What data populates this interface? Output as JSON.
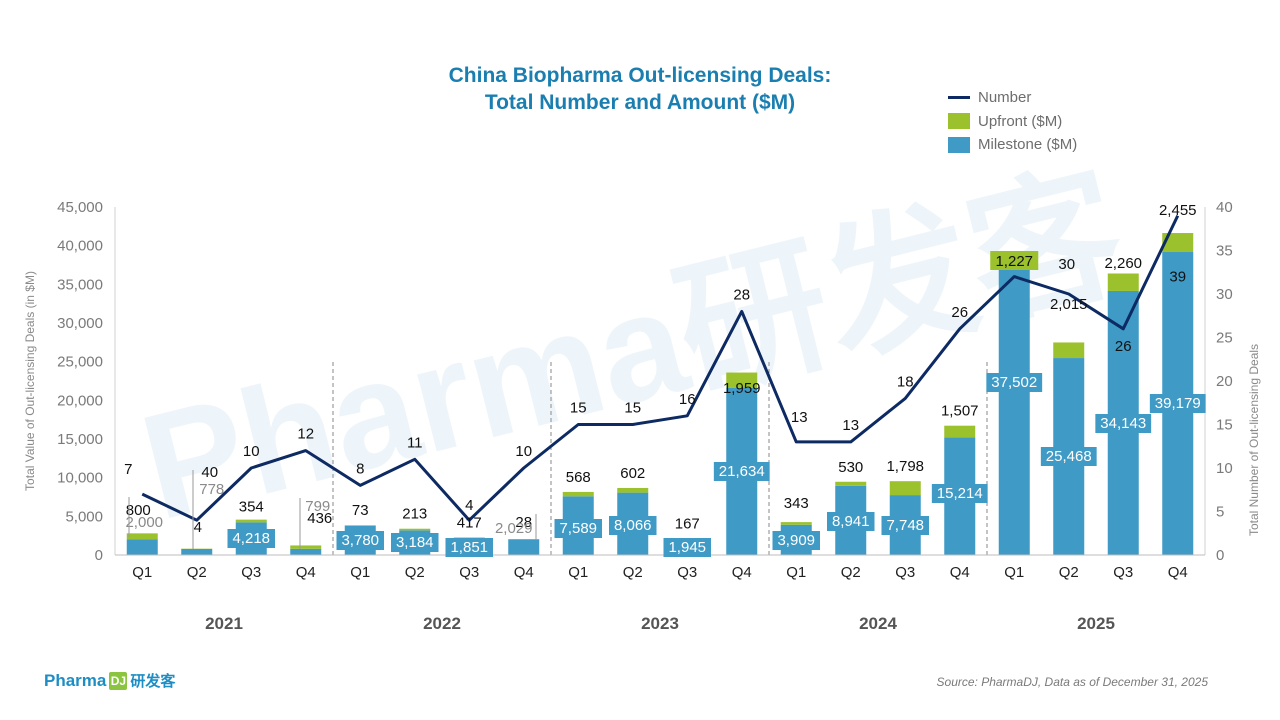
{
  "title_line1": "China Biopharma Out-licensing Deals:",
  "title_line2": "Total Number and Amount ($M)",
  "legend": {
    "number": "Number",
    "upfront": "Upfront ($M)",
    "milestone": "Milestone ($M)"
  },
  "colors": {
    "milestone": "#3f9ac6",
    "upfront": "#9bc12d",
    "number_line": "#0d2a63",
    "title": "#1a7fb0"
  },
  "source": "Source: PharmaDJ, Data as of December 31, 2025",
  "brand": {
    "name": "Pharma",
    "box": "DJ",
    "cn": "研发客"
  },
  "watermark": "Pharma研发客",
  "chart_data": {
    "type": "bar",
    "title": "China Biopharma Out-licensing Deals: Total Number and Amount ($M)",
    "ylabel": "Total Value of Out-licensing Deals (in $M)",
    "y2label": "Total Number of Out-licensing Deals",
    "ylim": [
      0,
      45000
    ],
    "y2lim": [
      0,
      40
    ],
    "yticks": [
      "0",
      "5,000",
      "10,000",
      "15,000",
      "20,000",
      "25,000",
      "30,000",
      "35,000",
      "40,000",
      "45,000"
    ],
    "y2ticks": [
      "0",
      "5",
      "10",
      "15",
      "20",
      "25",
      "30",
      "35",
      "40"
    ],
    "years": [
      "2021",
      "2022",
      "2023",
      "2024",
      "2025"
    ],
    "categories": [
      "Q1",
      "Q2",
      "Q3",
      "Q4",
      "Q1",
      "Q2",
      "Q3",
      "Q4",
      "Q1",
      "Q2",
      "Q3",
      "Q4",
      "Q1",
      "Q2",
      "Q3",
      "Q4",
      "Q1",
      "Q2",
      "Q3",
      "Q4"
    ],
    "series": [
      {
        "name": "Milestone ($M)",
        "values": [
          2000,
          778,
          4218,
          799,
          3780,
          3184,
          1851,
          2029,
          7589,
          8066,
          1945,
          21634,
          3909,
          8941,
          7748,
          15214,
          37502,
          25468,
          34143,
          39179
        ],
        "labels": [
          "2,000",
          "778",
          "4,218",
          "799",
          "3,780",
          "3,184",
          "1,851",
          "2,029",
          "7,589",
          "8,066",
          "1,945",
          "21,634",
          "3,909",
          "8,941",
          "7,748",
          "15,214",
          "37,502",
          "25,468",
          "34,143",
          "39,179"
        ]
      },
      {
        "name": "Upfront ($M)",
        "values": [
          800,
          40,
          354,
          436,
          73,
          213,
          417,
          28,
          568,
          602,
          167,
          1959,
          343,
          530,
          1798,
          1507,
          1227,
          2015,
          2260,
          2455
        ],
        "labels": [
          "800",
          "40",
          "354",
          "436",
          "73",
          "213",
          "417",
          "28",
          "568",
          "602",
          "167",
          "1,959",
          "343",
          "530",
          "1,798",
          "1,507",
          "1,227",
          "2,015",
          "2,260",
          "2,455"
        ]
      },
      {
        "name": "Number",
        "axis": "right",
        "values": [
          7,
          4,
          10,
          12,
          8,
          11,
          4,
          10,
          15,
          15,
          16,
          28,
          13,
          13,
          18,
          26,
          32,
          30,
          26,
          39
        ],
        "labels": [
          "7",
          "4",
          "10",
          "12",
          "8",
          "11",
          "4",
          "10",
          "15",
          "15",
          "16",
          "28",
          "13",
          "13",
          "18",
          "26",
          "",
          "30",
          "26",
          "39"
        ]
      }
    ],
    "grid": false,
    "legend_position": "top-right"
  }
}
